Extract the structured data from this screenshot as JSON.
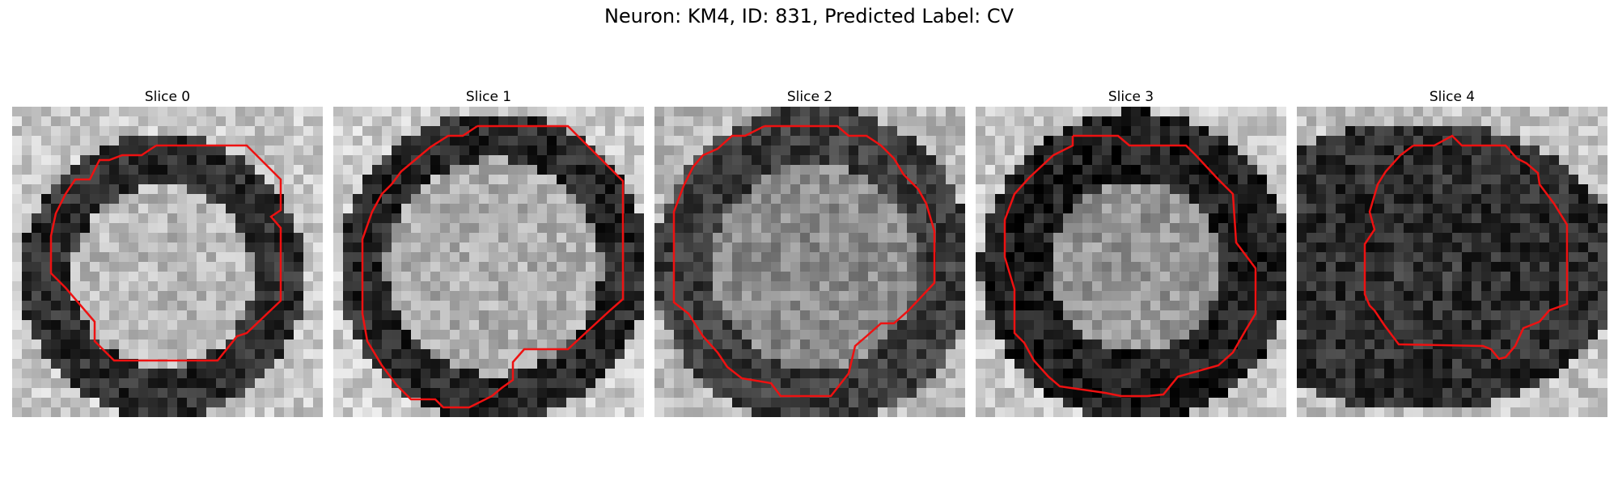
{
  "title": "Neuron: KM4, ID: 831, Predicted Label: CV",
  "colors": {
    "contour": "#ee1111",
    "background": "#ffffff"
  },
  "panels": [
    {
      "label": "Slice 0"
    },
    {
      "label": "Slice 1"
    },
    {
      "label": "Slice 2"
    },
    {
      "label": "Slice 3"
    },
    {
      "label": "Slice 4"
    }
  ]
}
